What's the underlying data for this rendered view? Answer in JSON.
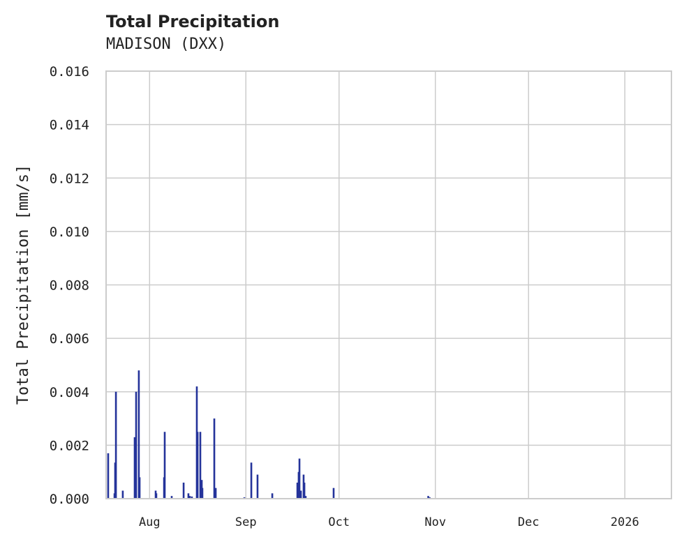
{
  "chart_data": {
    "type": "bar",
    "title": "Total Precipitation",
    "subtitle": "MADISON (DXX)",
    "xlabel": "",
    "ylabel": "Total Precipitation [mm/s]",
    "xlim": [
      "2025-07-18T00:00",
      "2026-01-16T00:00"
    ],
    "ylim": [
      0,
      0.016
    ],
    "grid": true,
    "color": "#24339a",
    "yticks": [
      "0.000",
      "0.002",
      "0.004",
      "0.006",
      "0.008",
      "0.010",
      "0.012",
      "0.014",
      "0.016"
    ],
    "xticks": [
      {
        "date": "2025-08-01T00:00",
        "label": "Aug"
      },
      {
        "date": "2025-09-01T00:00",
        "label": "Sep"
      },
      {
        "date": "2025-10-01T00:00",
        "label": "Oct"
      },
      {
        "date": "2025-11-01T00:00",
        "label": "Nov"
      },
      {
        "date": "2025-12-01T00:00",
        "label": "Dec"
      },
      {
        "date": "2026-01-01T00:00",
        "label": "2026"
      }
    ],
    "points": [
      [
        "2025-07-18T16:00",
        0.0017
      ],
      [
        "2025-07-20T17:00",
        0.0002
      ],
      [
        "2025-07-20T22:00",
        0.00135
      ],
      [
        "2025-07-21T04:00",
        0.004
      ],
      [
        "2025-07-23T09:00",
        0.0003
      ],
      [
        "2025-07-27T05:00",
        0.0023
      ],
      [
        "2025-07-27T16:00",
        0.004
      ],
      [
        "2025-07-28T13:00",
        0.0048
      ],
      [
        "2025-07-28T19:00",
        0.0008
      ],
      [
        "2025-08-02T23:00",
        0.0003
      ],
      [
        "2025-08-03T04:00",
        0.0002
      ],
      [
        "2025-08-05T16:00",
        0.0008
      ],
      [
        "2025-08-05T21:00",
        0.0025
      ],
      [
        "2025-08-08T03:00",
        0.0001
      ],
      [
        "2025-08-11T23:00",
        0.0006
      ],
      [
        "2025-08-13T12:00",
        0.0002
      ],
      [
        "2025-08-13T23:00",
        0.0001
      ],
      [
        "2025-08-14T15:00",
        8e-05
      ],
      [
        "2025-08-16T05:00",
        0.0042
      ],
      [
        "2025-08-16T11:00",
        0.0025
      ],
      [
        "2025-08-17T08:00",
        0.0025
      ],
      [
        "2025-08-17T19:00",
        0.0007
      ],
      [
        "2025-08-18T00:00",
        0.0004
      ],
      [
        "2025-08-21T20:00",
        0.003
      ],
      [
        "2025-08-22T07:00",
        0.0004
      ],
      [
        "2025-08-31T12:00",
        5e-05
      ],
      [
        "2025-09-02T18:00",
        0.00135
      ],
      [
        "2025-09-04T18:00",
        0.0009
      ],
      [
        "2025-09-09T12:00",
        0.0002
      ],
      [
        "2025-09-17T14:00",
        0.0006
      ],
      [
        "2025-09-18T00:00",
        0.001
      ],
      [
        "2025-09-18T06:00",
        0.0015
      ],
      [
        "2025-09-18T17:00",
        0.0003
      ],
      [
        "2025-09-19T14:00",
        0.0009
      ],
      [
        "2025-09-19T20:00",
        0.0006
      ],
      [
        "2025-09-20T06:00",
        0.0001
      ],
      [
        "2025-09-29T06:00",
        0.0004
      ],
      [
        "2025-10-29T17:00",
        0.0001
      ],
      [
        "2025-10-30T04:00",
        5e-05
      ]
    ]
  }
}
